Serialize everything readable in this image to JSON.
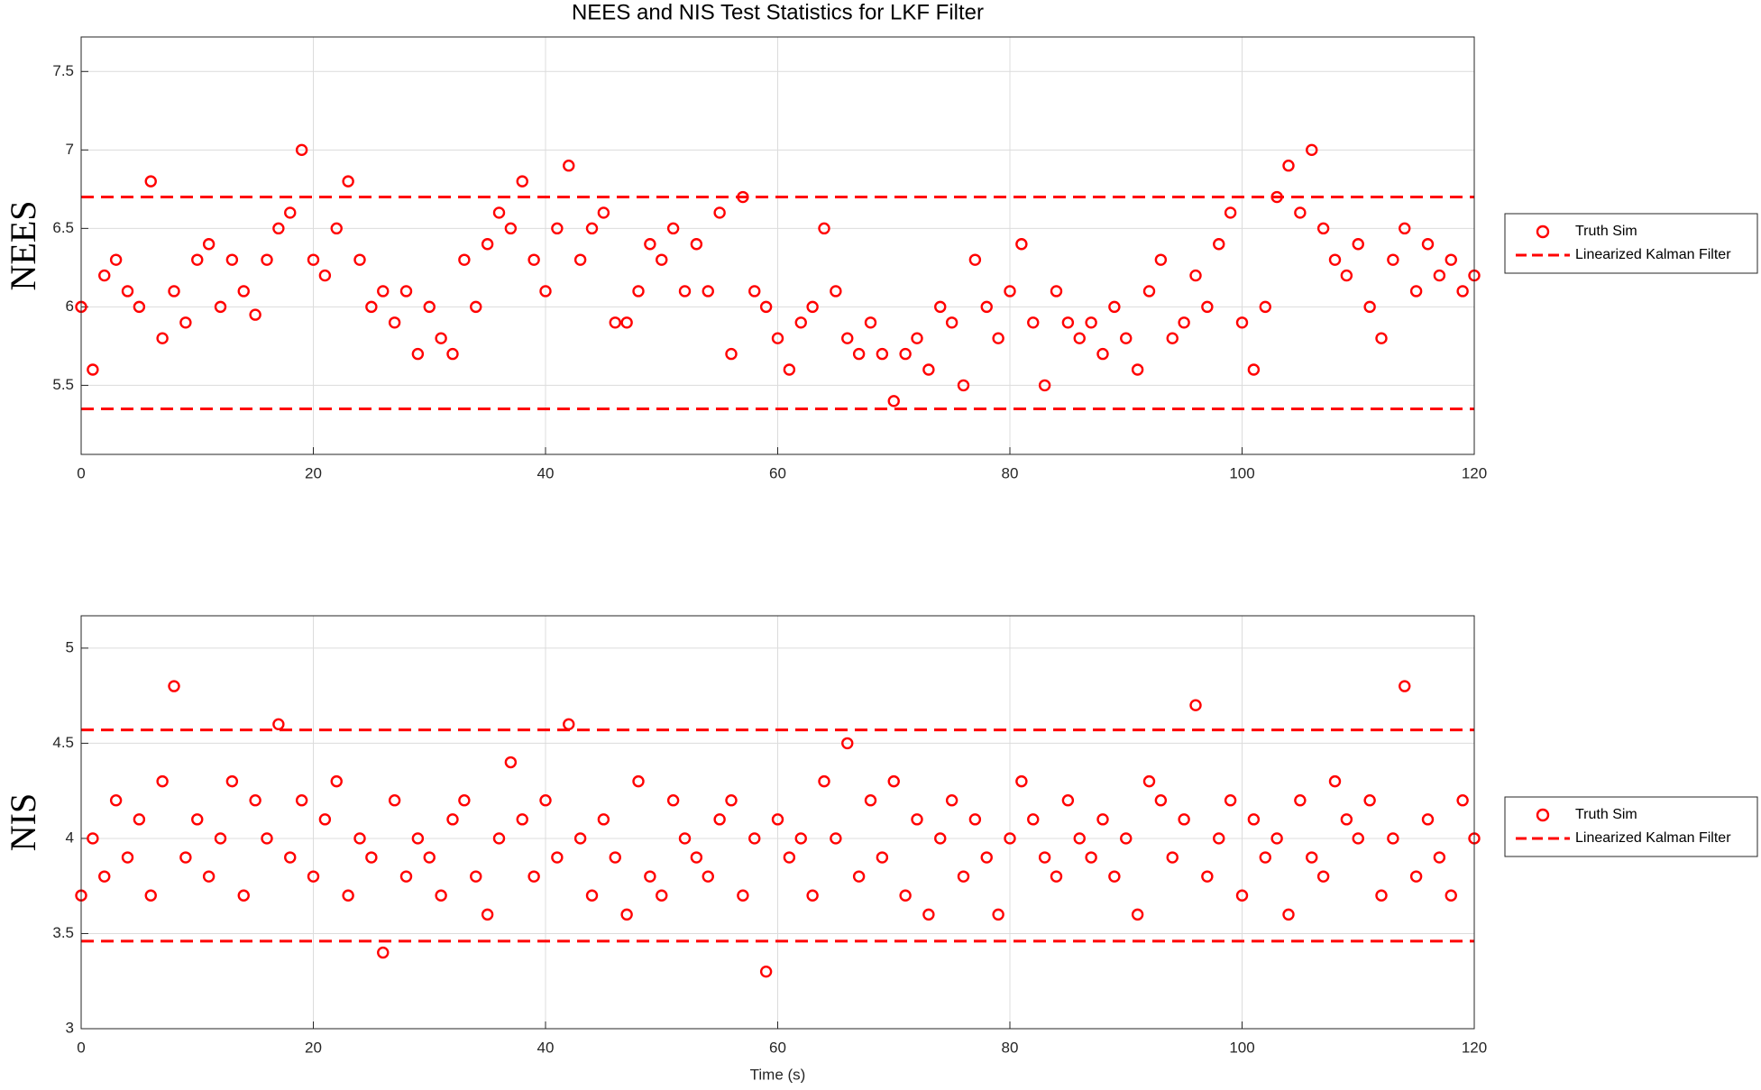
{
  "chart_data": [
    {
      "type": "scatter",
      "title": "NEES and NIS Test Statistics for LKF Filter",
      "ylabel": "NEES",
      "x": [
        0,
        1,
        2,
        3,
        4,
        5,
        6,
        7,
        8,
        9,
        10,
        11,
        12,
        13,
        14,
        15,
        16,
        17,
        18,
        19,
        20,
        21,
        22,
        23,
        24,
        25,
        26,
        27,
        28,
        29,
        30,
        31,
        32,
        33,
        34,
        35,
        36,
        37,
        38,
        39,
        40,
        41,
        42,
        43,
        44,
        45,
        46,
        47,
        48,
        49,
        50,
        51,
        52,
        53,
        54,
        55,
        56,
        57,
        58,
        59,
        60,
        61,
        62,
        63,
        64,
        65,
        66,
        67,
        68,
        69,
        70,
        71,
        72,
        73,
        74,
        75,
        76,
        77,
        78,
        79,
        80,
        81,
        82,
        83,
        84,
        85,
        86,
        87,
        88,
        89,
        90,
        91,
        92,
        93,
        94,
        95,
        96,
        97,
        98,
        99,
        100,
        101,
        102,
        103,
        104,
        105,
        106,
        107,
        108,
        109,
        110,
        111,
        112,
        113,
        114,
        115,
        116,
        117,
        118,
        119,
        120
      ],
      "series": [
        {
          "name": "Truth Sim",
          "color": "#ff0000",
          "values": [
            6.0,
            5.6,
            6.2,
            6.3,
            6.1,
            6.0,
            6.8,
            5.8,
            6.1,
            5.9,
            6.3,
            6.4,
            6.0,
            6.3,
            6.1,
            5.95,
            6.3,
            6.5,
            6.6,
            7.0,
            6.3,
            6.2,
            6.5,
            6.8,
            6.3,
            6.0,
            6.1,
            5.9,
            6.1,
            5.7,
            6.0,
            5.8,
            5.7,
            6.3,
            6.0,
            6.4,
            6.6,
            6.5,
            6.8,
            6.3,
            6.1,
            6.5,
            6.9,
            6.3,
            6.5,
            6.6,
            5.9,
            5.9,
            6.1,
            6.4,
            6.3,
            6.5,
            6.1,
            6.4,
            6.1,
            6.6,
            5.7,
            6.7,
            6.1,
            6.0,
            5.8,
            5.6,
            5.9,
            6.0,
            6.5,
            6.1,
            5.8,
            5.7,
            5.9,
            5.7,
            5.4,
            5.7,
            5.8,
            5.6,
            6.0,
            5.9,
            5.5,
            6.3,
            6.0,
            5.8,
            6.1,
            6.4,
            5.9,
            5.5,
            6.1,
            5.9,
            5.8,
            5.9,
            5.7,
            6.0,
            5.8,
            5.6,
            6.1,
            6.3,
            5.8,
            5.9,
            6.2,
            6.0,
            6.4,
            6.6,
            5.9,
            5.6,
            6.0,
            6.7,
            6.9,
            6.6,
            7.0,
            6.5,
            6.3,
            6.2,
            6.4,
            6.0,
            5.8,
            6.3,
            6.5,
            6.1,
            6.4,
            6.2,
            6.3,
            6.1,
            6.2
          ]
        }
      ],
      "hlines": {
        "name": "Linearized Kalman Filter",
        "color": "#ff0000",
        "values": [
          5.35,
          6.7
        ]
      },
      "xlim": [
        0,
        120
      ],
      "xticks": [
        0,
        20,
        40,
        60,
        80,
        100,
        120
      ],
      "ylim": [
        5.06,
        7.72
      ],
      "yticks": [
        5.5,
        6,
        6.5,
        7,
        7.5
      ],
      "grid": true,
      "legend": "outside-right"
    },
    {
      "type": "scatter",
      "ylabel": "NIS",
      "xlabel": "Time (s)",
      "x": [
        0,
        1,
        2,
        3,
        4,
        5,
        6,
        7,
        8,
        9,
        10,
        11,
        12,
        13,
        14,
        15,
        16,
        17,
        18,
        19,
        20,
        21,
        22,
        23,
        24,
        25,
        26,
        27,
        28,
        29,
        30,
        31,
        32,
        33,
        34,
        35,
        36,
        37,
        38,
        39,
        40,
        41,
        42,
        43,
        44,
        45,
        46,
        47,
        48,
        49,
        50,
        51,
        52,
        53,
        54,
        55,
        56,
        57,
        58,
        59,
        60,
        61,
        62,
        63,
        64,
        65,
        66,
        67,
        68,
        69,
        70,
        71,
        72,
        73,
        74,
        75,
        76,
        77,
        78,
        79,
        80,
        81,
        82,
        83,
        84,
        85,
        86,
        87,
        88,
        89,
        90,
        91,
        92,
        93,
        94,
        95,
        96,
        97,
        98,
        99,
        100,
        101,
        102,
        103,
        104,
        105,
        106,
        107,
        108,
        109,
        110,
        111,
        112,
        113,
        114,
        115,
        116,
        117,
        118,
        119,
        120
      ],
      "series": [
        {
          "name": "Truth Sim",
          "color": "#ff0000",
          "values": [
            3.7,
            4.0,
            3.8,
            4.2,
            3.9,
            4.1,
            3.7,
            4.3,
            4.8,
            3.9,
            4.1,
            3.8,
            4.0,
            4.3,
            3.7,
            4.2,
            4.0,
            4.6,
            3.9,
            4.2,
            3.8,
            4.1,
            4.3,
            3.7,
            4.0,
            3.9,
            3.4,
            4.2,
            3.8,
            4.0,
            3.9,
            3.7,
            4.1,
            4.2,
            3.8,
            3.6,
            4.0,
            4.4,
            4.1,
            3.8,
            4.2,
            3.9,
            4.6,
            4.0,
            3.7,
            4.1,
            3.9,
            3.6,
            4.3,
            3.8,
            3.7,
            4.2,
            4.0,
            3.9,
            3.8,
            4.1,
            4.2,
            3.7,
            4.0,
            3.3,
            4.1,
            3.9,
            4.0,
            3.7,
            4.3,
            4.0,
            4.5,
            3.8,
            4.2,
            3.9,
            4.3,
            3.7,
            4.1,
            3.6,
            4.0,
            4.2,
            3.8,
            4.1,
            3.9,
            3.6,
            4.0,
            4.3,
            4.1,
            3.9,
            3.8,
            4.2,
            4.0,
            3.9,
            4.1,
            3.8,
            4.0,
            3.6,
            4.3,
            4.2,
            3.9,
            4.1,
            4.7,
            3.8,
            4.0,
            4.2,
            3.7,
            4.1,
            3.9,
            4.0,
            3.6,
            4.2,
            3.9,
            3.8,
            4.3,
            4.1,
            4.0,
            4.2,
            3.7,
            4.0,
            4.8,
            3.8,
            4.1,
            3.9,
            3.7,
            4.2,
            4.0
          ]
        }
      ],
      "hlines": {
        "name": "Linearized Kalman Filter",
        "color": "#ff0000",
        "values": [
          3.46,
          4.57
        ]
      },
      "xlim": [
        0,
        120
      ],
      "xticks": [
        0,
        20,
        40,
        60,
        80,
        100,
        120
      ],
      "ylim": [
        3,
        5.17
      ],
      "yticks": [
        3,
        3.5,
        4,
        4.5,
        5
      ],
      "grid": true,
      "legend": "outside-right"
    }
  ]
}
